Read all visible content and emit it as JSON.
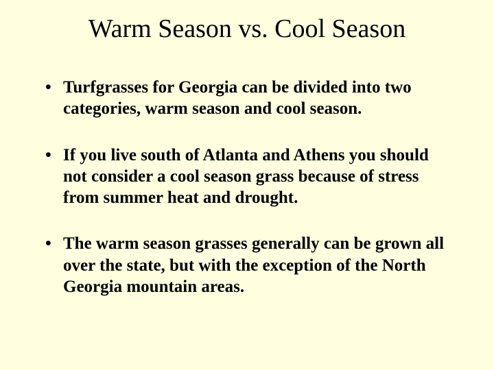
{
  "slide": {
    "title": "Warm Season vs. Cool Season",
    "bullets": [
      "Turfgrasses for Georgia can be divided into two categories, warm season and cool season.",
      "If you live south of Atlanta and Athens you should not consider a cool season grass because of stress from summer heat and drought.",
      "The warm season grasses generally can be grown all over the state, but with the exception of the North Georgia mountain areas."
    ],
    "background_color": "#ffffe0",
    "text_color": "#000000",
    "title_fontsize": 38,
    "body_fontsize": 25,
    "font_family": "Times New Roman"
  }
}
